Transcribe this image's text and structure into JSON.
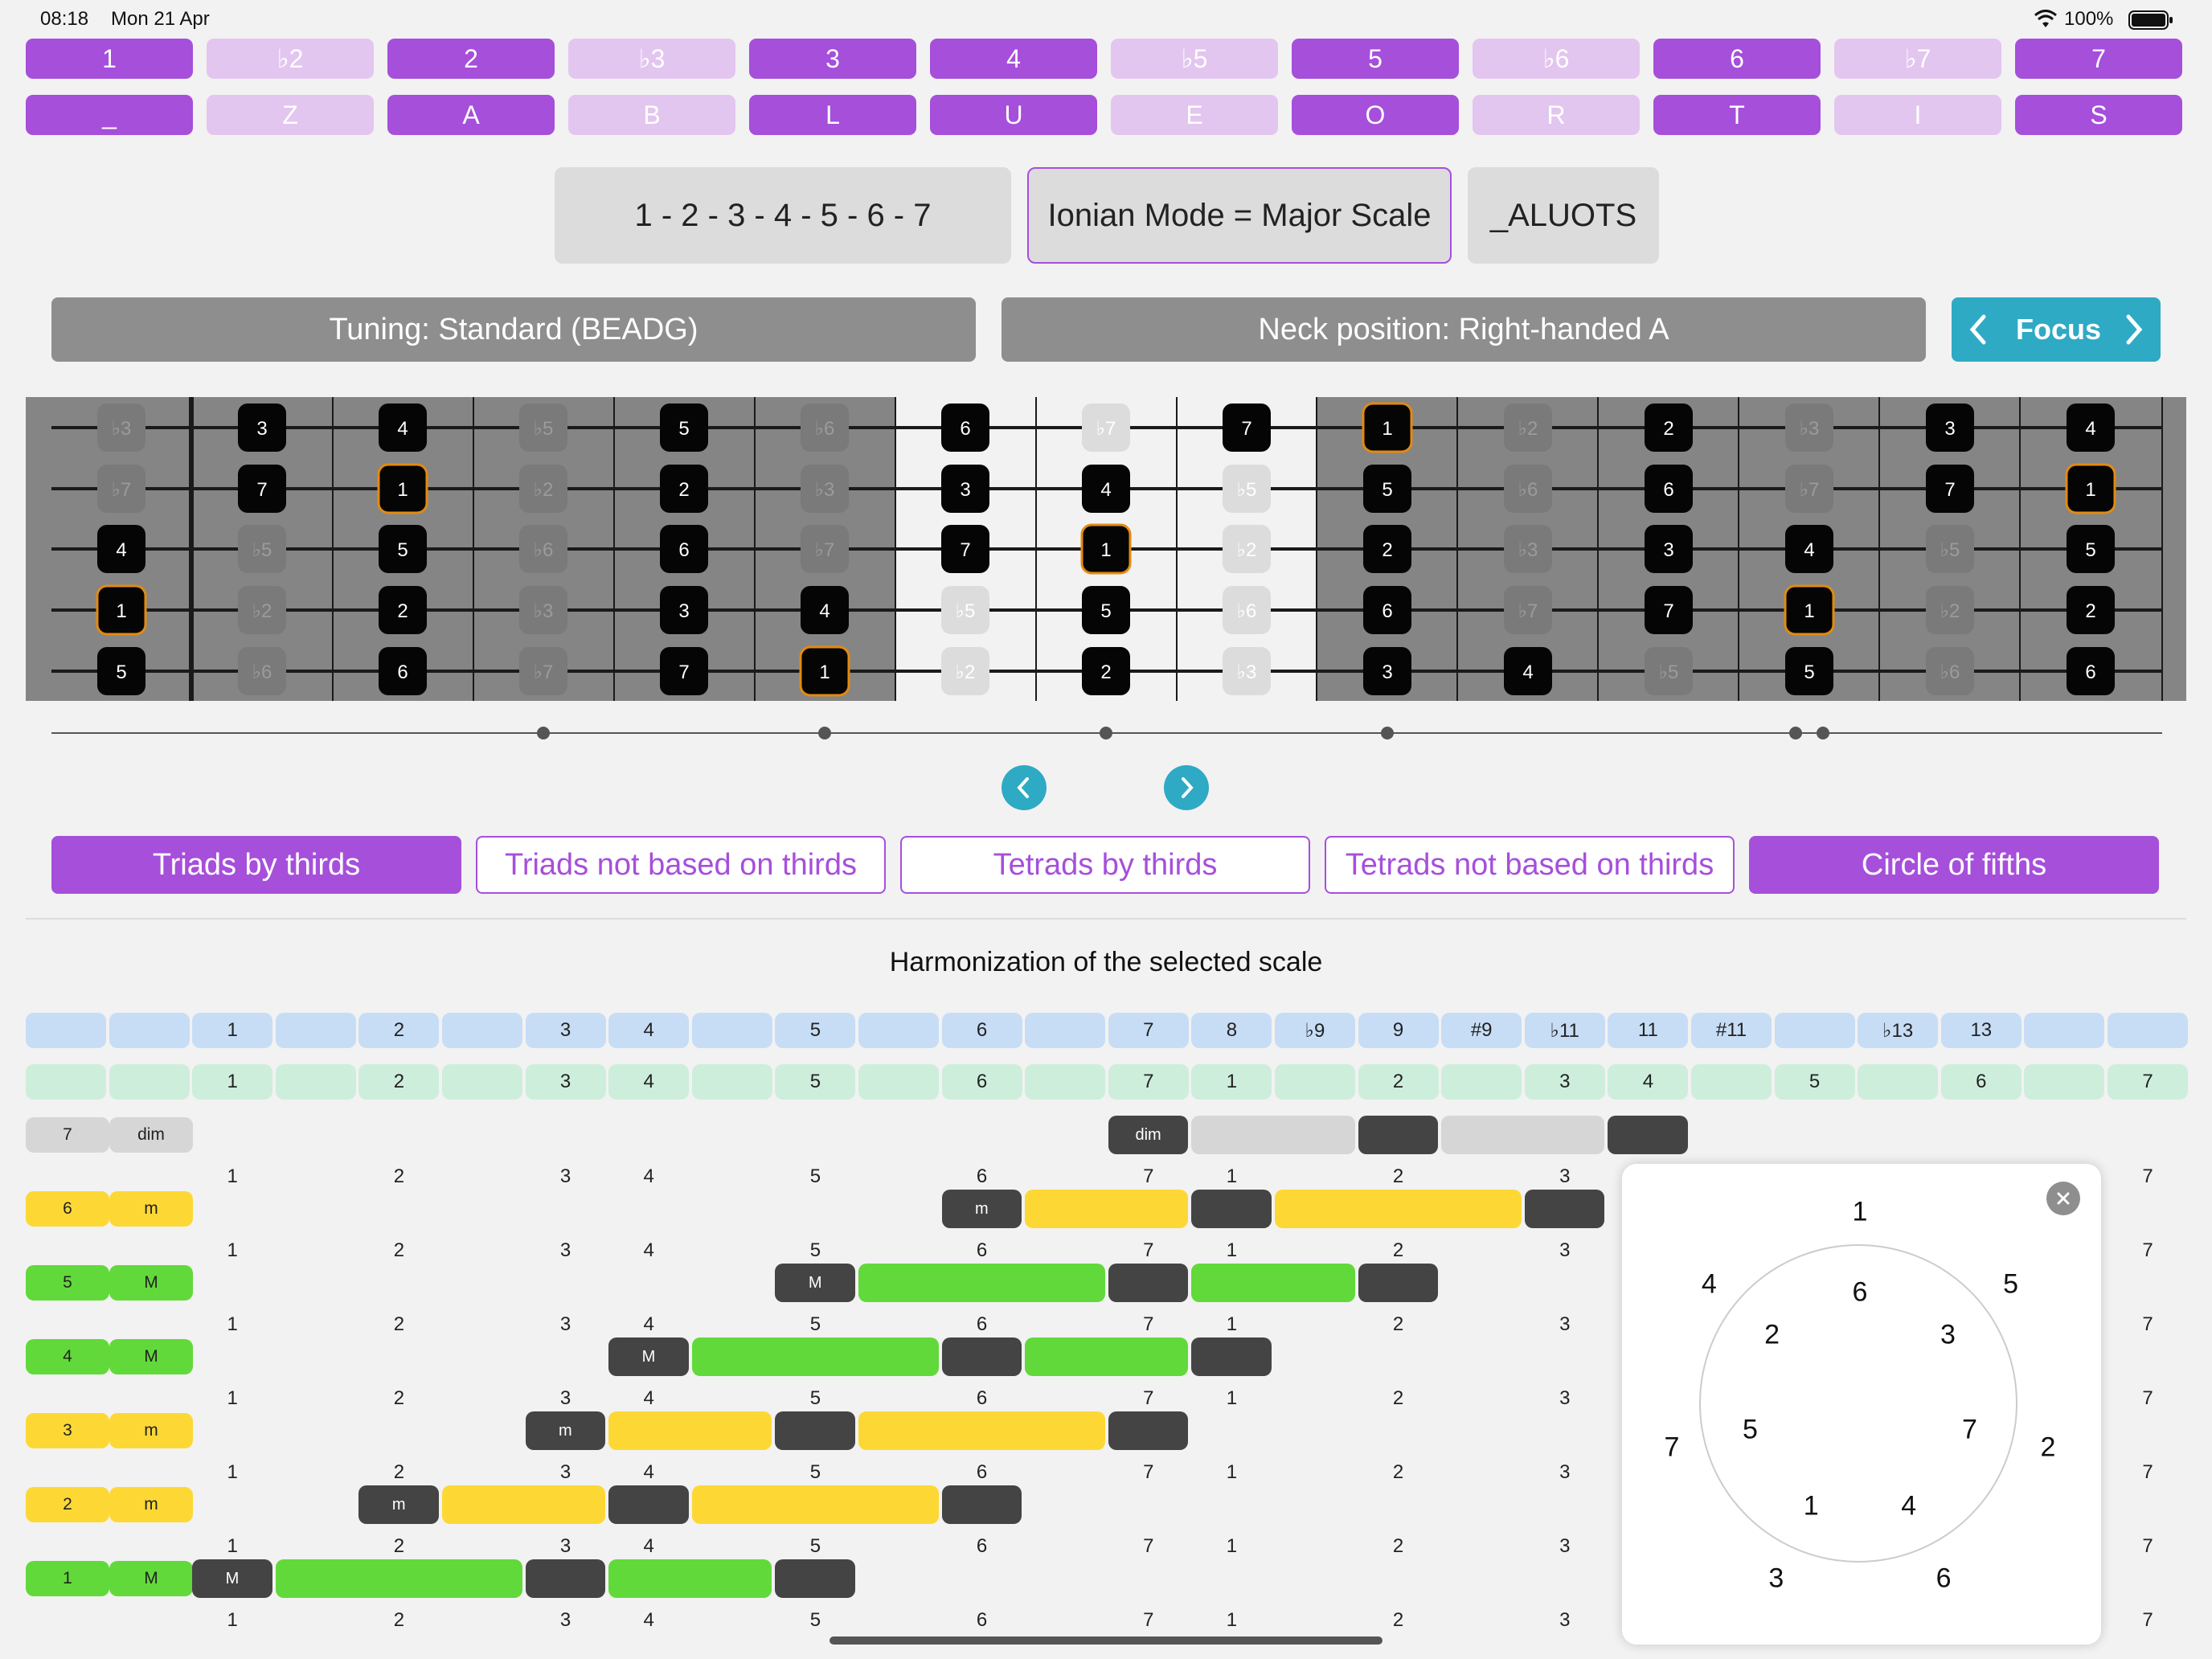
{
  "status": {
    "time": "08:18",
    "date": "Mon 21 Apr",
    "battery": "100%"
  },
  "degrees": [
    {
      "label": "1",
      "letter": "_",
      "active": true
    },
    {
      "label": "♭2",
      "letter": "Z",
      "active": false
    },
    {
      "label": "2",
      "letter": "A",
      "active": true
    },
    {
      "label": "♭3",
      "letter": "B",
      "active": false
    },
    {
      "label": "3",
      "letter": "L",
      "active": true
    },
    {
      "label": "4",
      "letter": "U",
      "active": true
    },
    {
      "label": "♭5",
      "letter": "E",
      "active": false
    },
    {
      "label": "5",
      "letter": "O",
      "active": true
    },
    {
      "label": "♭6",
      "letter": "R",
      "active": false
    },
    {
      "label": "6",
      "letter": "T",
      "active": true
    },
    {
      "label": "♭7",
      "letter": "I",
      "active": false
    },
    {
      "label": "7",
      "letter": "S",
      "active": true
    }
  ],
  "scale": {
    "formula": "1 - 2 - 3 - 4 - 5 - 6 - 7",
    "mode": "Ionian Mode = Major Scale",
    "code": "_ALUOTS"
  },
  "tuning_label": "Tuning: Standard (BEADG)",
  "neck_label": "Neck position: Right-handed A",
  "focus_label": "Focus",
  "fretboard": {
    "strings": [
      [
        "♭3",
        "3",
        "4",
        "♭5",
        "5",
        "♭6",
        "6",
        "♭7",
        "7",
        "1",
        "♭2",
        "2",
        "♭3",
        "3",
        "4"
      ],
      [
        "♭7",
        "7",
        "1",
        "♭2",
        "2",
        "♭3",
        "3",
        "4",
        "♭5",
        "5",
        "♭6",
        "6",
        "♭7",
        "7",
        "1"
      ],
      [
        "4",
        "♭5",
        "5",
        "♭6",
        "6",
        "♭7",
        "7",
        "1",
        "♭2",
        "2",
        "♭3",
        "3",
        "4",
        "♭5",
        "5"
      ],
      [
        "1",
        "♭2",
        "2",
        "♭3",
        "3",
        "4",
        "♭5",
        "5",
        "♭6",
        "6",
        "♭7",
        "7",
        "1",
        "♭2",
        "2"
      ],
      [
        "5",
        "♭6",
        "6",
        "♭7",
        "7",
        "1",
        "♭2",
        "2",
        "♭3",
        "3",
        "4",
        "♭5",
        "5",
        "♭6",
        "6"
      ]
    ]
  },
  "harmony_tabs": [
    {
      "label": "Triads by thirds",
      "active": true
    },
    {
      "label": "Triads not based on thirds",
      "active": false
    },
    {
      "label": "Tetrads by thirds",
      "active": false
    },
    {
      "label": "Tetrads not based on thirds",
      "active": false
    },
    {
      "label": "Circle of fifths",
      "active": true
    }
  ],
  "harmonization_title": "Harmonization of the selected scale",
  "interval_header": [
    "",
    "",
    "1",
    "",
    "2",
    "",
    "3",
    "4",
    "",
    "5",
    "",
    "6",
    "",
    "7",
    "8",
    "♭9",
    "9",
    "#9",
    "♭11",
    "11",
    "#11",
    "",
    "♭13",
    "13",
    "",
    ""
  ],
  "degree_header": [
    "",
    "",
    "1",
    "",
    "2",
    "",
    "3",
    "4",
    "",
    "5",
    "",
    "6",
    "",
    "7",
    "1",
    "",
    "2",
    "",
    "3",
    "4",
    "",
    "5",
    "",
    "6",
    "",
    "7"
  ],
  "scale_degree_row": [
    "1",
    "2",
    "3",
    "4",
    "5",
    "6",
    "7",
    "1",
    "2",
    "3",
    "7"
  ],
  "chords": [
    {
      "degree": "7",
      "quality": "dim"
    },
    {
      "degree": "6",
      "quality": "m"
    },
    {
      "degree": "5",
      "quality": "M"
    },
    {
      "degree": "4",
      "quality": "M"
    },
    {
      "degree": "3",
      "quality": "m"
    },
    {
      "degree": "2",
      "quality": "m"
    },
    {
      "degree": "1",
      "quality": "M"
    }
  ],
  "circle_of_fifths": {
    "outer": [
      "1",
      "5",
      "2",
      "6",
      "3",
      "7",
      "4"
    ],
    "inner": [
      "6",
      "3",
      "7",
      "4",
      "1",
      "5",
      "2"
    ]
  },
  "colors": {
    "accent": "#a64fdb",
    "major": "#62d93a",
    "minor": "#fdd835",
    "dim": "#d6d6d6",
    "teal": "#2eaac4"
  }
}
